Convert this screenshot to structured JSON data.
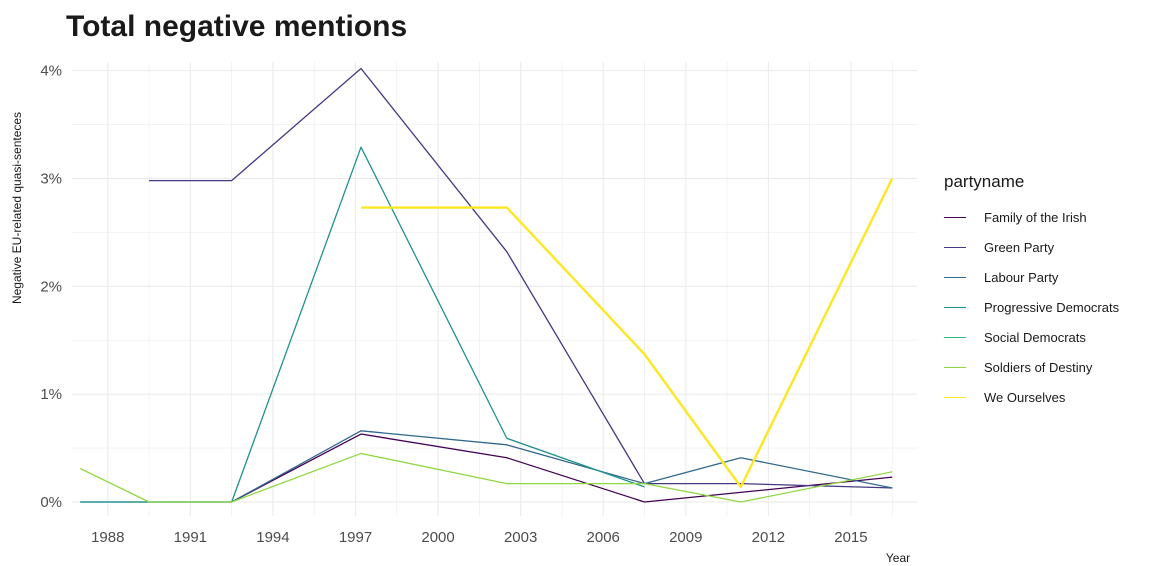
{
  "chart_data": {
    "type": "line",
    "title": "Total negative mentions",
    "xlabel": "Year",
    "ylabel": "Negative EU-related quasi-senteces",
    "xlim": [
      1986.7,
      2017.4
    ],
    "ylim": [
      -0.0013,
      0.0408
    ],
    "x_ticks": [
      1988,
      1991,
      1994,
      1997,
      2000,
      2003,
      2006,
      2009,
      2012,
      2015
    ],
    "y_ticks": [
      0,
      0.01,
      0.02,
      0.03,
      0.04
    ],
    "y_tick_labels": [
      "0%",
      "1%",
      "2%",
      "3%",
      "4%"
    ],
    "legend_title": "partyname",
    "legend_position": "right",
    "grid": true,
    "series": [
      {
        "name": "Family of the Irish",
        "color": "#440154",
        "x": [
          1992.5,
          1997.2,
          2002.5,
          2007.5,
          2016.5
        ],
        "y": [
          0,
          0.0063,
          0.0041,
          0,
          0.0023
        ]
      },
      {
        "name": "Green Party",
        "color": "#443983",
        "x": [
          1989.5,
          1992.5,
          1997.2,
          2002.5,
          2007.5,
          2011,
          2016.5
        ],
        "y": [
          0.0298,
          0.0298,
          0.0402,
          0.0232,
          0.0017,
          0.0017,
          0.0013
        ]
      },
      {
        "name": "Labour Party",
        "color": "#31688e",
        "x": [
          1987,
          1989.5,
          1992.5,
          1997.2,
          2002.5,
          2007.5,
          2011,
          2016.5
        ],
        "y": [
          0,
          0,
          0,
          0.0066,
          0.0053,
          0.0017,
          0.0041,
          0.0013
        ]
      },
      {
        "name": "Progressive Democrats",
        "color": "#21918c",
        "x": [
          1987,
          1989.5,
          1992.5,
          1997.2,
          2002.5,
          2007.5
        ],
        "y": [
          0,
          0,
          0,
          0.0329,
          0.0059,
          0.0014
        ]
      },
      {
        "name": "Social Democrats",
        "color": "#35b779",
        "x": [
          2016.5
        ],
        "y": [
          0.0028
        ]
      },
      {
        "name": "Soldiers of Destiny",
        "color": "#90d743",
        "x": [
          1987,
          1989.5,
          1992.5,
          1997.2,
          2002.5,
          2007.5,
          2011,
          2016.5
        ],
        "y": [
          0.0031,
          0,
          0,
          0.0045,
          0.0017,
          0.0017,
          0,
          0.0028
        ]
      },
      {
        "name": "We Ourselves",
        "color": "#fde725",
        "x": [
          1997.2,
          2002.5,
          2007.5,
          2011,
          2016.5
        ],
        "y": [
          0.0273,
          0.0273,
          0.0137,
          0.0014,
          0.03
        ]
      }
    ]
  }
}
